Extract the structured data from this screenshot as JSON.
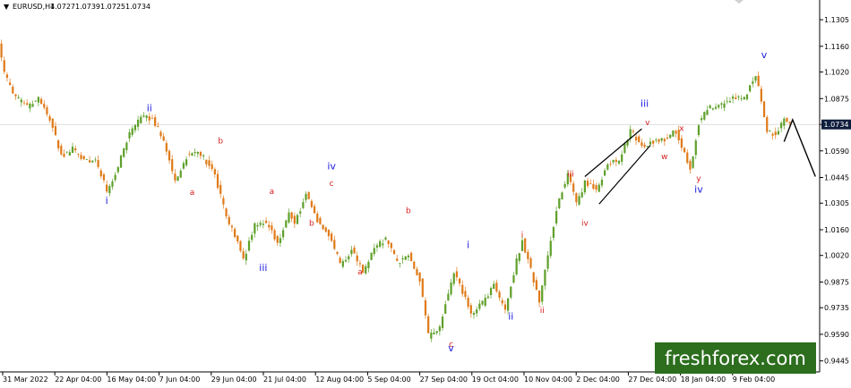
{
  "header": {
    "arrow": "▼",
    "symbol": "EURUSD,H4",
    "open": "1.0727",
    "high": "1.0739",
    "low": "1.0725",
    "close": "1.0734"
  },
  "watermark": "freshforex.com",
  "current_price": "1.0734",
  "colors": {
    "bull": "#5fa02a",
    "bear": "#e07a18",
    "wave_blue": "#1a1adc",
    "wave_red": "#d42020",
    "price_box": "#0f1d3d",
    "watermark_bg": "#2c6e1e"
  },
  "chart_data": {
    "type": "candlestick",
    "symbol": "EURUSD",
    "timeframe": "H4",
    "y_ticks": [
      "1.1305",
      "1.1160",
      "1.1020",
      "1.0875",
      "1.0734",
      "1.0590",
      "1.0445",
      "1.0305",
      "1.0160",
      "1.0020",
      "0.9875",
      "0.9735",
      "0.9590",
      "0.9445"
    ],
    "x_ticks": [
      "31 Mar 2022",
      "22 Apr 04:00",
      "16 May 04:00",
      "7 Jun 04:00",
      "29 Jun 04:00",
      "21 Jul 04:00",
      "12 Aug 04:00",
      "5 Sep 04:00",
      "27 Sep 04:00",
      "19 Oct 04:00",
      "10 Nov 04:00",
      "2 Dec 04:00",
      "27 Dec 04:00",
      "18 Jan 04:00",
      "9 Feb 04:00"
    ],
    "ylim": [
      0.9385,
      1.1393
    ],
    "price_path": [
      [
        0,
        1.119
      ],
      [
        2,
        1.1005
      ],
      [
        6,
        1.088
      ],
      [
        10,
        1.083
      ],
      [
        14,
        1.088
      ],
      [
        18,
        1.076
      ],
      [
        22,
        1.056
      ],
      [
        26,
        1.06
      ],
      [
        30,
        1.054
      ],
      [
        34,
        1.054
      ],
      [
        38,
        1.037
      ],
      [
        42,
        1.051
      ],
      [
        46,
        1.069
      ],
      [
        50,
        1.077
      ],
      [
        54,
        1.077
      ],
      [
        58,
        1.064
      ],
      [
        62,
        1.042
      ],
      [
        66,
        1.056
      ],
      [
        70,
        1.059
      ],
      [
        74,
        1.051
      ],
      [
        76,
        1.045
      ],
      [
        80,
        1.022
      ],
      [
        84,
        1.009
      ],
      [
        86,
        1.0
      ],
      [
        90,
        1.019
      ],
      [
        94,
        1.02
      ],
      [
        98,
        1.009
      ],
      [
        102,
        1.025
      ],
      [
        104,
        1.02
      ],
      [
        108,
        1.035
      ],
      [
        112,
        1.021
      ],
      [
        116,
        1.013
      ],
      [
        120,
        0.997
      ],
      [
        124,
        1.005
      ],
      [
        128,
        0.993
      ],
      [
        132,
        1.006
      ],
      [
        136,
        1.011
      ],
      [
        140,
        0.998
      ],
      [
        144,
        1.002
      ],
      [
        148,
        0.988
      ],
      [
        151,
        0.958
      ],
      [
        155,
        0.962
      ],
      [
        157,
        0.976
      ],
      [
        160,
        0.992
      ],
      [
        163,
        0.982
      ],
      [
        166,
        0.97
      ],
      [
        170,
        0.976
      ],
      [
        174,
        0.986
      ],
      [
        178,
        0.972
      ],
      [
        182,
        1.0
      ],
      [
        184,
        1.01
      ],
      [
        188,
        0.988
      ],
      [
        190,
        0.977
      ],
      [
        194,
        1.011
      ],
      [
        197,
        1.034
      ],
      [
        200,
        1.046
      ],
      [
        203,
        1.029
      ],
      [
        206,
        1.042
      ],
      [
        210,
        1.038
      ],
      [
        214,
        1.052
      ],
      [
        218,
        1.054
      ],
      [
        222,
        1.07
      ],
      [
        226,
        1.061
      ],
      [
        230,
        1.064
      ],
      [
        234,
        1.065
      ],
      [
        238,
        1.07
      ],
      [
        241,
        1.057
      ],
      [
        243,
        1.049
      ],
      [
        246,
        1.075
      ],
      [
        250,
        1.083
      ],
      [
        254,
        1.084
      ],
      [
        258,
        1.088
      ],
      [
        262,
        1.088
      ],
      [
        266,
        1.101
      ],
      [
        270,
        1.07
      ],
      [
        273,
        1.067
      ],
      [
        276,
        1.077
      ],
      [
        277,
        1.0734
      ]
    ],
    "projection": [
      [
        275,
        1.064
      ],
      [
        278,
        1.076
      ],
      [
        286,
        1.045
      ]
    ],
    "wedge_lines": [
      [
        [
          205,
          1.045
        ],
        [
          225,
          1.071
        ]
      ],
      [
        [
          210,
          1.03
        ],
        [
          228,
          1.062
        ]
      ]
    ],
    "wave_labels": [
      {
        "text": "i",
        "style": "blue",
        "x": 37,
        "y": 1.0345,
        "pos": "below"
      },
      {
        "text": "ii",
        "style": "blue",
        "x": 52,
        "y": 1.0785,
        "pos": "above"
      },
      {
        "text": "iii",
        "style": "blue",
        "x": 92,
        "y": 0.998,
        "pos": "below"
      },
      {
        "text": "iv",
        "style": "blue",
        "x": 116,
        "y": 1.047,
        "pos": "above"
      },
      {
        "text": "v",
        "style": "blue",
        "x": 158,
        "y": 0.954,
        "pos": "below"
      },
      {
        "text": "i",
        "style": "blue",
        "x": 164,
        "y": 1.004,
        "pos": "above"
      },
      {
        "text": "ii",
        "style": "blue",
        "x": 179,
        "y": 0.9715,
        "pos": "below"
      },
      {
        "text": "iii",
        "style": "blue",
        "x": 226,
        "y": 1.081,
        "pos": "above"
      },
      {
        "text": "iv",
        "style": "blue",
        "x": 245,
        "y": 1.0405,
        "pos": "below"
      },
      {
        "text": "v",
        "style": "blue",
        "x": 268,
        "y": 1.1075,
        "pos": "above"
      },
      {
        "text": "a",
        "style": "red",
        "x": 67,
        "y": 1.0395,
        "pos": "below"
      },
      {
        "text": "b",
        "style": "red",
        "x": 77,
        "y": 1.061,
        "pos": "above"
      },
      {
        "text": "a",
        "style": "red",
        "x": 95,
        "y": 1.0335,
        "pos": "above"
      },
      {
        "text": "b",
        "style": "red",
        "x": 109,
        "y": 1.0225,
        "pos": "below"
      },
      {
        "text": "c",
        "style": "red",
        "x": 116,
        "y": 1.038,
        "pos": "above"
      },
      {
        "text": "a",
        "style": "red",
        "x": 126,
        "y": 0.996,
        "pos": "below"
      },
      {
        "text": "b",
        "style": "red",
        "x": 143,
        "y": 1.023,
        "pos": "above"
      },
      {
        "text": "c",
        "style": "red",
        "x": 158,
        "y": 0.9565,
        "pos": "below"
      },
      {
        "text": "i",
        "style": "red",
        "x": 183,
        "y": 1.01,
        "pos": "above"
      },
      {
        "text": "ii",
        "style": "red",
        "x": 190,
        "y": 0.975,
        "pos": "below"
      },
      {
        "text": "iii",
        "style": "red",
        "x": 200,
        "y": 1.043,
        "pos": "above"
      },
      {
        "text": "iv",
        "style": "red",
        "x": 205,
        "y": 1.0225,
        "pos": "below"
      },
      {
        "text": "v",
        "style": "red",
        "x": 227,
        "y": 1.071,
        "pos": "above"
      },
      {
        "text": "w",
        "style": "red",
        "x": 233,
        "y": 1.059,
        "pos": "below"
      },
      {
        "text": "x",
        "style": "red",
        "x": 239,
        "y": 1.068,
        "pos": "above"
      },
      {
        "text": "y",
        "style": "red",
        "x": 245,
        "y": 1.047,
        "pos": "below"
      }
    ]
  }
}
